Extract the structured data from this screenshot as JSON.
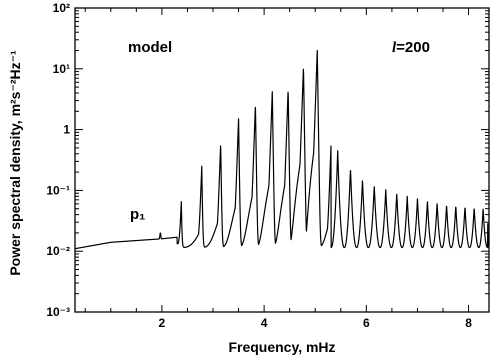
{
  "chart_data": {
    "type": "line",
    "xlabel": "Frequency, mHz",
    "ylabel": "Power spectral density, m²s⁻²Hz⁻¹",
    "xlim": [
      0.3,
      8.4
    ],
    "ylim": [
      0.001,
      100
    ],
    "yscale": "log",
    "grid": false,
    "x_ticks": [
      2,
      4,
      6,
      8
    ],
    "x_tick_labels": [
      "2",
      "4",
      "6",
      "8"
    ],
    "y_ticks": [
      0.001,
      0.01,
      0.1,
      1,
      10,
      100
    ],
    "y_tick_labels": [
      "10⁻³",
      "10⁻²",
      "10⁻¹",
      "1",
      "10¹",
      "10²"
    ],
    "annotations": {
      "model": "model",
      "degree_symbol": "l",
      "degree_value": "=200",
      "p1_label": "p₁"
    },
    "background_level": [
      {
        "x": 0.3,
        "y": 0.011
      },
      {
        "x": 1.0,
        "y": 0.014
      },
      {
        "x": 2.0,
        "y": 0.016
      },
      {
        "x": 2.3,
        "y": 0.017
      }
    ],
    "peaks": [
      {
        "x": 1.97,
        "y": 0.02
      },
      {
        "x": 2.38,
        "y": 0.065
      },
      {
        "x": 2.78,
        "y": 0.25
      },
      {
        "x": 3.15,
        "y": 0.6
      },
      {
        "x": 3.5,
        "y": 1.5
      },
      {
        "x": 3.83,
        "y": 2.6
      },
      {
        "x": 4.16,
        "y": 4.2
      },
      {
        "x": 4.47,
        "y": 4.6
      },
      {
        "x": 4.77,
        "y": 11
      },
      {
        "x": 5.04,
        "y": 20
      },
      {
        "x": 5.31,
        "y": 0.6
      },
      {
        "x": 5.57,
        "y": 0.3
      },
      {
        "x": 5.81,
        "y": 0.17
      },
      {
        "x": 6.04,
        "y": 0.13
      },
      {
        "x": 6.27,
        "y": 0.11
      },
      {
        "x": 6.49,
        "y": 0.095
      },
      {
        "x": 6.7,
        "y": 0.085
      },
      {
        "x": 6.9,
        "y": 0.075
      },
      {
        "x": 7.1,
        "y": 0.07
      },
      {
        "x": 7.29,
        "y": 0.065
      },
      {
        "x": 7.48,
        "y": 0.06
      },
      {
        "x": 7.66,
        "y": 0.058
      },
      {
        "x": 7.84,
        "y": 0.056
      },
      {
        "x": 8.02,
        "y": 0.054
      },
      {
        "x": 8.2,
        "y": 0.052
      },
      {
        "x": 8.37,
        "y": 0.05
      }
    ]
  }
}
